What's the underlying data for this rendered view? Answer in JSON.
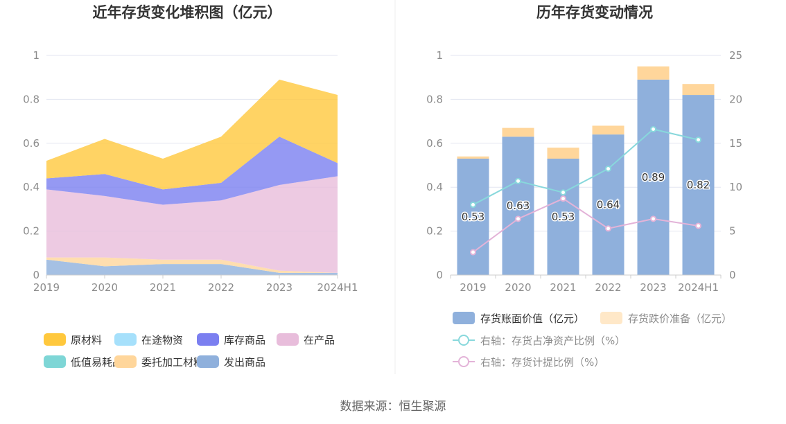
{
  "source": {
    "text": "数据来源：恒生聚源"
  },
  "chart_data": [
    {
      "type": "area",
      "stacked": true,
      "title": "近年存货变化堆积图（亿元）",
      "x": [
        "2019",
        "2020",
        "2021",
        "2022",
        "2023",
        "2024H1"
      ],
      "ylim": [
        0,
        1
      ],
      "y_ticks": [
        "0",
        "0.2",
        "0.4",
        "0.6",
        "0.8",
        "1"
      ],
      "grid": true,
      "legend_position": "bottom",
      "series": [
        {
          "name": "发出商品",
          "color": "#8fb0dc",
          "values": [
            0.07,
            0.04,
            0.05,
            0.05,
            0.01,
            0.01
          ]
        },
        {
          "name": "委托加工材料",
          "color": "#ffd69b",
          "values": [
            0.01,
            0.04,
            0.02,
            0.02,
            0.01,
            0.0
          ]
        },
        {
          "name": "低值易耗品",
          "color": "#7ed6d6",
          "values": [
            0,
            0,
            0,
            0,
            0,
            0
          ]
        },
        {
          "name": "在产品",
          "color": "#e8bddb",
          "values": [
            0.31,
            0.28,
            0.25,
            0.27,
            0.39,
            0.44
          ]
        },
        {
          "name": "库存商品",
          "color": "#7b7ff0",
          "values": [
            0.05,
            0.1,
            0.07,
            0.08,
            0.22,
            0.06
          ]
        },
        {
          "name": "在途物资",
          "color": "#a6e0fb",
          "values": [
            0,
            0,
            0,
            0,
            0,
            0
          ]
        },
        {
          "name": "原材料",
          "color": "#ffc83d",
          "values": [
            0.08,
            0.16,
            0.14,
            0.21,
            0.26,
            0.31
          ]
        }
      ],
      "legend_order": [
        "原材料",
        "在途物资",
        "库存商品",
        "在产品",
        "低值易耗品",
        "委托加工材料",
        "发出商品"
      ]
    },
    {
      "type": "bar",
      "stacked": true,
      "title": "历年存货变动情况",
      "categories": [
        "2019",
        "2020",
        "2021",
        "2022",
        "2023",
        "2024H1"
      ],
      "ylim": [
        0,
        1
      ],
      "y_ticks": [
        "0",
        "0.2",
        "0.4",
        "0.6",
        "0.8",
        "1"
      ],
      "y2lim": [
        0,
        25
      ],
      "y2_ticks": [
        "0",
        "5",
        "10",
        "15",
        "20",
        "25"
      ],
      "grid": true,
      "legend_position": "bottom",
      "series": [
        {
          "name": "存货账面价值（亿元）",
          "color": "#8fb0dc",
          "values": [
            0.53,
            0.63,
            0.53,
            0.64,
            0.89,
            0.82
          ],
          "labels": [
            "0.53",
            "0.63",
            "0.53",
            "0.64",
            "0.89",
            "0.82"
          ]
        },
        {
          "name": "存货跌价准备（亿元）",
          "color": "#ffd69b",
          "values": [
            0.01,
            0.04,
            0.05,
            0.04,
            0.06,
            0.05
          ]
        }
      ],
      "lines": [
        {
          "name": "右轴：存货占净资产比例（%）",
          "color": "#88d8dc",
          "values": [
            8.0,
            10.7,
            9.4,
            12.1,
            16.6,
            15.4
          ]
        },
        {
          "name": "右轴：存货计提比例（%）",
          "color": "#e3b3d8",
          "values": [
            2.6,
            6.4,
            8.7,
            5.3,
            6.4,
            5.6
          ]
        }
      ]
    }
  ]
}
